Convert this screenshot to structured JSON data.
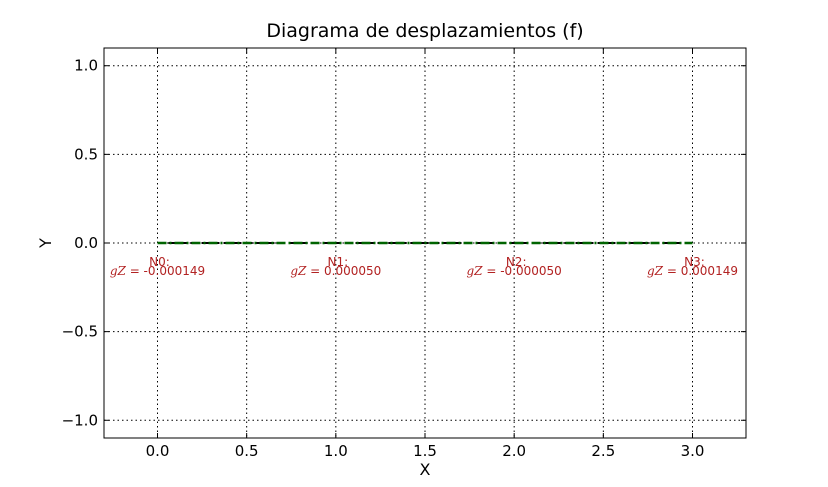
{
  "chart_data": {
    "type": "line",
    "title": "Diagrama de desplazamientos (f)",
    "xlabel": "X",
    "ylabel": "Y",
    "xlim": [
      -0.3,
      3.3
    ],
    "ylim": [
      -1.1,
      1.1
    ],
    "xticks": [
      0.0,
      0.5,
      1.0,
      1.5,
      2.0,
      2.5,
      3.0
    ],
    "xtick_labels": [
      "0.0",
      "0.5",
      "1.0",
      "1.5",
      "2.0",
      "2.5",
      "3.0"
    ],
    "yticks": [
      1.0,
      0.5,
      0.0,
      -0.5,
      -1.0
    ],
    "ytick_labels": [
      "1.0",
      "0.5",
      "0.0",
      "−0.5",
      "−1.0"
    ],
    "grid": true,
    "series": [
      {
        "style": "dashed",
        "color": "#000000",
        "x": [
          0.0,
          1.0,
          2.0,
          3.0
        ],
        "y": [
          0.0,
          0.0,
          0.0,
          0.0
        ]
      },
      {
        "style": "dash-dot",
        "color": "#006400",
        "x": [
          0.0,
          1.0,
          2.0,
          3.0
        ],
        "y": [
          0.0,
          0.0,
          0.0,
          0.0
        ]
      }
    ],
    "annotations": [
      {
        "x": 0.0,
        "y": 0.0,
        "node": "N0:",
        "var": "gZ",
        "value": " = -0.000149"
      },
      {
        "x": 1.0,
        "y": 0.0,
        "node": "N1:",
        "var": "gZ",
        "value": " = 0.000050"
      },
      {
        "x": 2.0,
        "y": 0.0,
        "node": "N2:",
        "var": "gZ",
        "value": " = -0.000050"
      },
      {
        "x": 3.0,
        "y": 0.0,
        "node": "N3:",
        "var": "gZ",
        "value": " = 0.000149"
      }
    ],
    "annotation_color": "#b22222"
  }
}
